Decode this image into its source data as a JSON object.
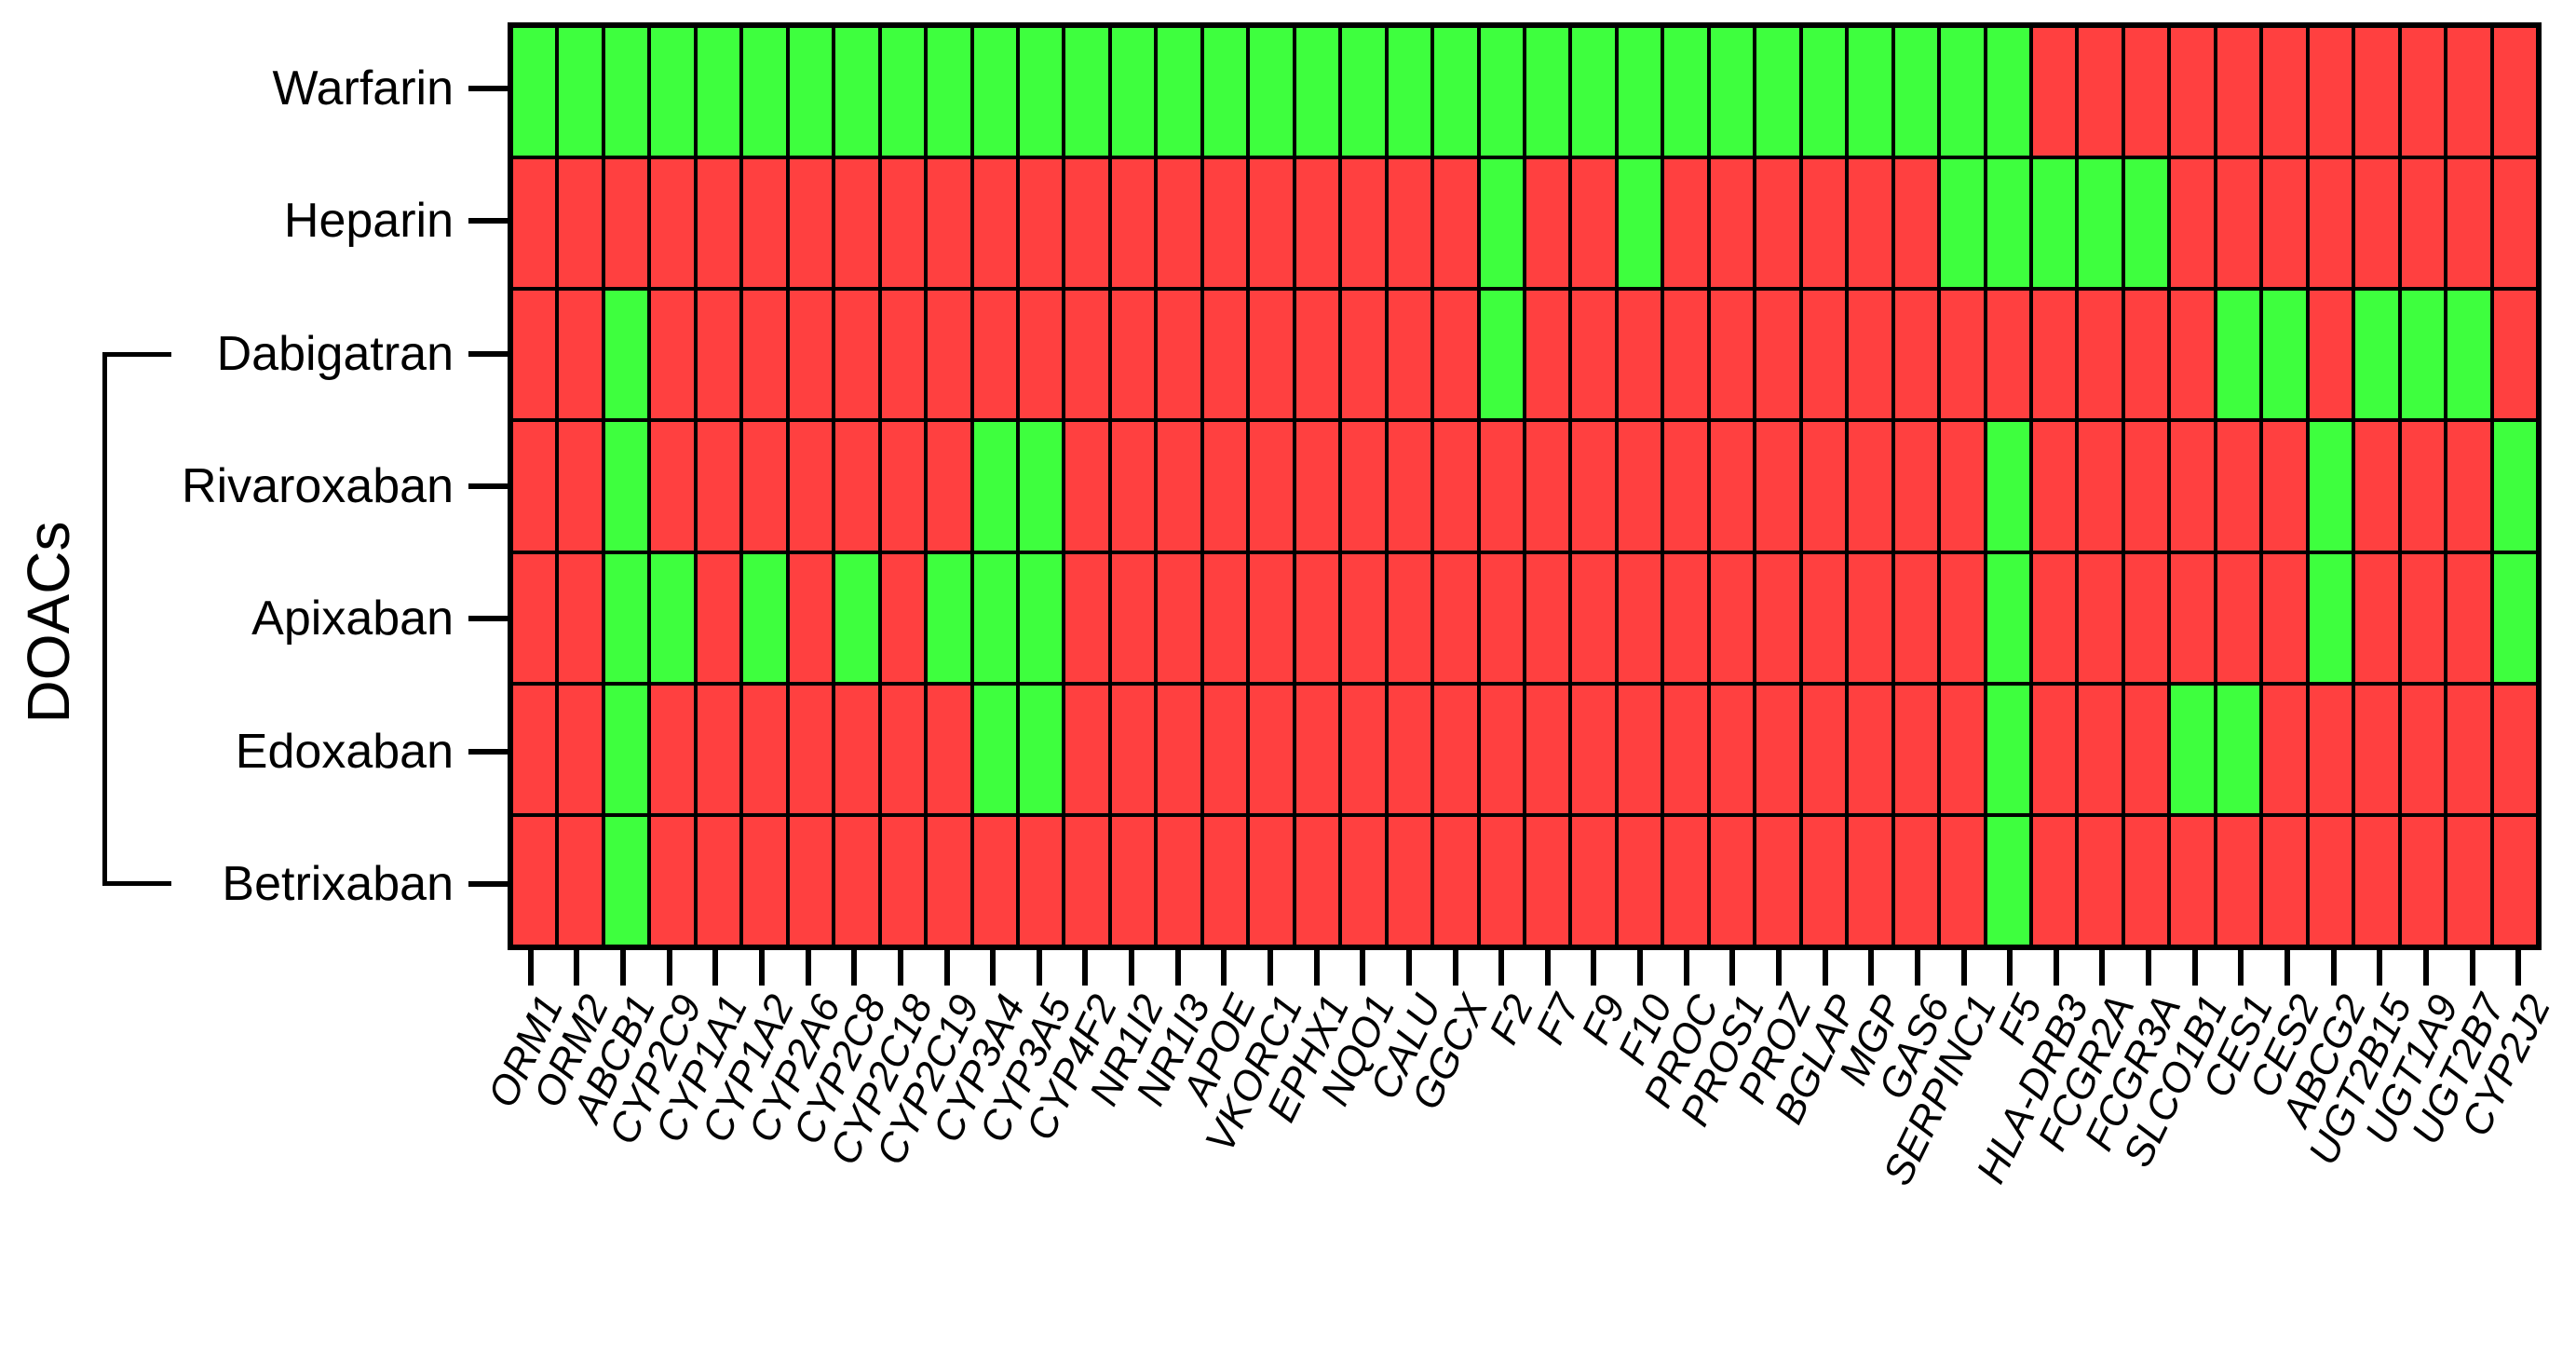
{
  "chart_data": {
    "type": "heatmap",
    "title": "",
    "legend_position": "none",
    "grid_border_color": "#000000",
    "colors": {
      "G": "#3eff3e",
      "R": "#ff4040"
    },
    "row_group": {
      "label": "DOACs",
      "members": [
        "Dabigatran",
        "Rivaroxaban",
        "Apixaban",
        "Edoxaban",
        "Betrixaban"
      ]
    },
    "rows": [
      "Warfarin",
      "Heparin",
      "Dabigatran",
      "Rivaroxaban",
      "Apixaban",
      "Edoxaban",
      "Betrixaban"
    ],
    "columns": [
      "ORM1",
      "ORM2",
      "ABCB1",
      "CYP2C9",
      "CYP1A1",
      "CYP1A2",
      "CYP2A6",
      "CYP2C8",
      "CYP2C18",
      "CYP2C19",
      "CYP3A4",
      "CYP3A5",
      "CYP4F2",
      "NR1I2",
      "NR1I3",
      "APOE",
      "VKORC1",
      "EPHX1",
      "NQO1",
      "CALU",
      "GGCX",
      "F2",
      "F7",
      "F9",
      "F10",
      "PROC",
      "PROS1",
      "PROZ",
      "BGLAP",
      "MGP",
      "GAS6",
      "SERPINC1",
      "F5",
      "HLA-DRB3",
      "FCGR2A",
      "FCGR3A",
      "SLCO1B1",
      "CES1",
      "CES2",
      "ABCG2",
      "UGT2B15",
      "UGT1A9",
      "UGT2B7",
      "CYP2J2"
    ],
    "matrix": [
      "GGGGGGGGGGGGGGGGGGGGGGGGGGGGGGGGGRRRRRRRRRRR",
      "RRRRRRRRRRRRRRRRRRRRRGRRGRRRRRRGGGGGRRRRRRRR",
      "RRGRRRRRRRRRRRRRRRRRRGRRRRRRRRRRRRRRRGGRGGGR",
      "RRGRRRRRRRGGRRRRRRRRRRRRRRRRRRRRGRRRRRRGRRRG",
      "RRGGRGRGRGGGRRRRRRRRRRRRRRRRRRRRGRRRRRRGRRRG",
      "RRGRRRRRRRGGRRRRRRRRRRRRRRRRRRRRGRRRGGRRRRRR",
      "RRGRRRRRRRRRRRRRRRRRRRRRRRRRRRRRGRRRRRRRRRRR"
    ]
  }
}
